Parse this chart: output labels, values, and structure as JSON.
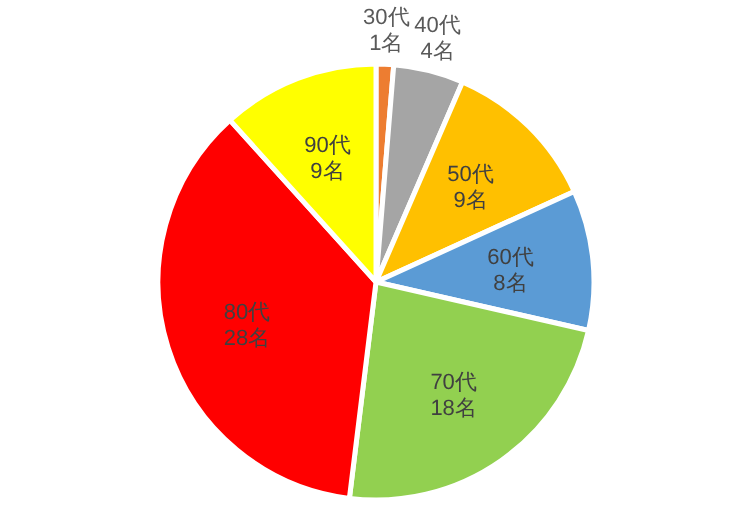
{
  "chart_data": {
    "type": "pie",
    "categories": [
      "30代",
      "40代",
      "50代",
      "60代",
      "70代",
      "80代",
      "90代"
    ],
    "values": [
      1,
      4,
      9,
      8,
      18,
      28,
      9
    ],
    "value_labels": [
      "1名",
      "4名",
      "9名",
      "8名",
      "18名",
      "28名",
      "9名"
    ],
    "colors": [
      "#ed7d31",
      "#a5a5a5",
      "#ffc000",
      "#5b9bd5",
      "#92d050",
      "#ff0000",
      "#ffff00"
    ]
  }
}
